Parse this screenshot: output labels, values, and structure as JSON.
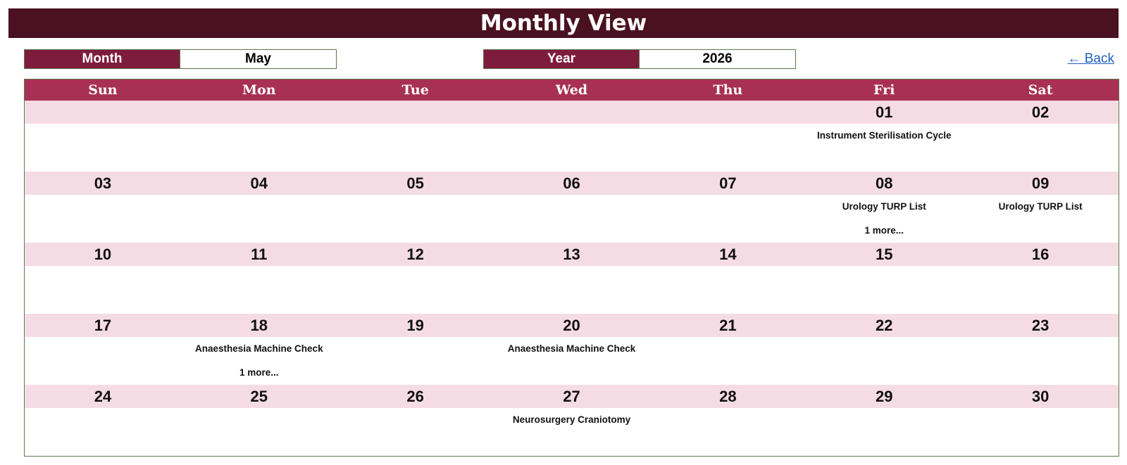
{
  "header": {
    "title": "Monthly View"
  },
  "month_selector": {
    "label": "Month",
    "value": "May"
  },
  "year_selector": {
    "label": "Year",
    "value": "2026"
  },
  "back_link": {
    "label": "← Back"
  },
  "calendar": {
    "weekdays": [
      "Sun",
      "Mon",
      "Tue",
      "Wed",
      "Thu",
      "Fri",
      "Sat"
    ],
    "weeks": [
      [
        {
          "date": "",
          "events": [],
          "more": ""
        },
        {
          "date": "",
          "events": [],
          "more": ""
        },
        {
          "date": "",
          "events": [],
          "more": ""
        },
        {
          "date": "",
          "events": [],
          "more": ""
        },
        {
          "date": "",
          "events": [],
          "more": ""
        },
        {
          "date": "01",
          "events": [
            "Instrument Sterilisation Cycle"
          ],
          "more": ""
        },
        {
          "date": "02",
          "events": [],
          "more": ""
        }
      ],
      [
        {
          "date": "03",
          "events": [],
          "more": ""
        },
        {
          "date": "04",
          "events": [],
          "more": ""
        },
        {
          "date": "05",
          "events": [],
          "more": ""
        },
        {
          "date": "06",
          "events": [],
          "more": ""
        },
        {
          "date": "07",
          "events": [],
          "more": ""
        },
        {
          "date": "08",
          "events": [
            "Urology TURP List"
          ],
          "more": "1 more..."
        },
        {
          "date": "09",
          "events": [
            "Urology TURP List"
          ],
          "more": ""
        }
      ],
      [
        {
          "date": "10",
          "events": [],
          "more": ""
        },
        {
          "date": "11",
          "events": [],
          "more": ""
        },
        {
          "date": "12",
          "events": [],
          "more": ""
        },
        {
          "date": "13",
          "events": [],
          "more": ""
        },
        {
          "date": "14",
          "events": [],
          "more": ""
        },
        {
          "date": "15",
          "events": [],
          "more": ""
        },
        {
          "date": "16",
          "events": [],
          "more": ""
        }
      ],
      [
        {
          "date": "17",
          "events": [],
          "more": ""
        },
        {
          "date": "18",
          "events": [
            "Anaesthesia Machine Check"
          ],
          "more": "1 more..."
        },
        {
          "date": "19",
          "events": [],
          "more": ""
        },
        {
          "date": "20",
          "events": [
            "Anaesthesia Machine Check"
          ],
          "more": ""
        },
        {
          "date": "21",
          "events": [],
          "more": ""
        },
        {
          "date": "22",
          "events": [],
          "more": ""
        },
        {
          "date": "23",
          "events": [],
          "more": ""
        }
      ],
      [
        {
          "date": "24",
          "events": [],
          "more": ""
        },
        {
          "date": "25",
          "events": [],
          "more": ""
        },
        {
          "date": "26",
          "events": [],
          "more": ""
        },
        {
          "date": "27",
          "events": [
            "Neurosurgery Craniotomy"
          ],
          "more": ""
        },
        {
          "date": "28",
          "events": [],
          "more": ""
        },
        {
          "date": "29",
          "events": [],
          "more": ""
        },
        {
          "date": "30",
          "events": [],
          "more": ""
        }
      ]
    ]
  },
  "colors": {
    "title_bg": "#4a1122",
    "label_bg": "#7e1c3e",
    "weekday_bg": "#a83054",
    "date_row_bg": "#f5dce4",
    "border": "#5b7a4b",
    "link": "#1f5fbf"
  }
}
